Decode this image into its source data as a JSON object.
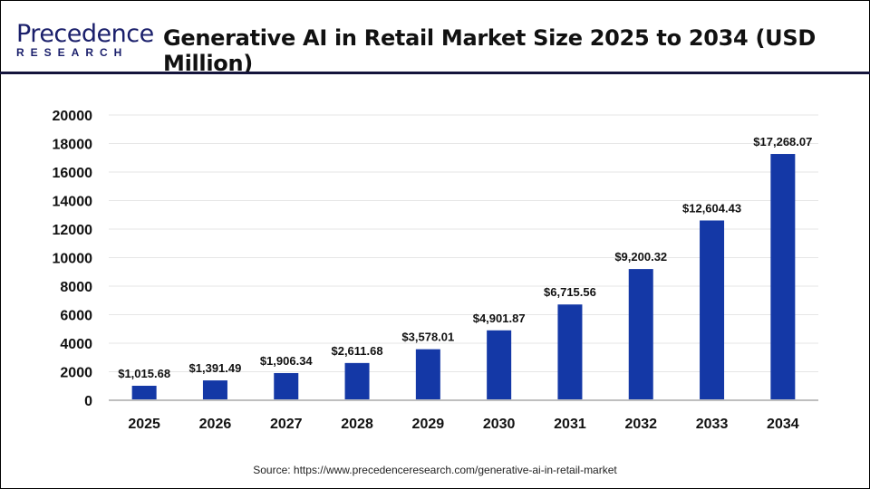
{
  "logo": {
    "line1": "Precedence",
    "line2": "RESEARCH"
  },
  "header": {
    "title": "Generative AI in Retail Market Size 2025 to 2034 (USD Million)"
  },
  "source": "Source: https://www.precedenceresearch.com/generative-ai-in-retail-market",
  "chart_data": {
    "type": "bar",
    "title": "Generative AI in Retail Market Size 2025 to 2034 (USD Million)",
    "categories": [
      "2025",
      "2026",
      "2027",
      "2028",
      "2029",
      "2030",
      "2031",
      "2032",
      "2033",
      "2034"
    ],
    "values": [
      1015.68,
      1391.49,
      1906.34,
      2611.68,
      3578.01,
      4901.87,
      6715.56,
      9200.32,
      12604.43,
      17268.07
    ],
    "data_labels": [
      "$1,015.68",
      "$1,391.49",
      "$1,906.34",
      "$2,611.68",
      "$3,578.01",
      "$4,901.87",
      "$6,715.56",
      "$9,200.32",
      "$12,604.43",
      "$17,268.07"
    ],
    "ylim": [
      0,
      20000
    ],
    "yticks": [
      "0",
      "2000",
      "4000",
      "6000",
      "8000",
      "10000",
      "12000",
      "14000",
      "16000",
      "18000",
      "20000"
    ],
    "grid": true,
    "bar_color": "#1438a6",
    "xlabel": "",
    "ylabel": ""
  }
}
